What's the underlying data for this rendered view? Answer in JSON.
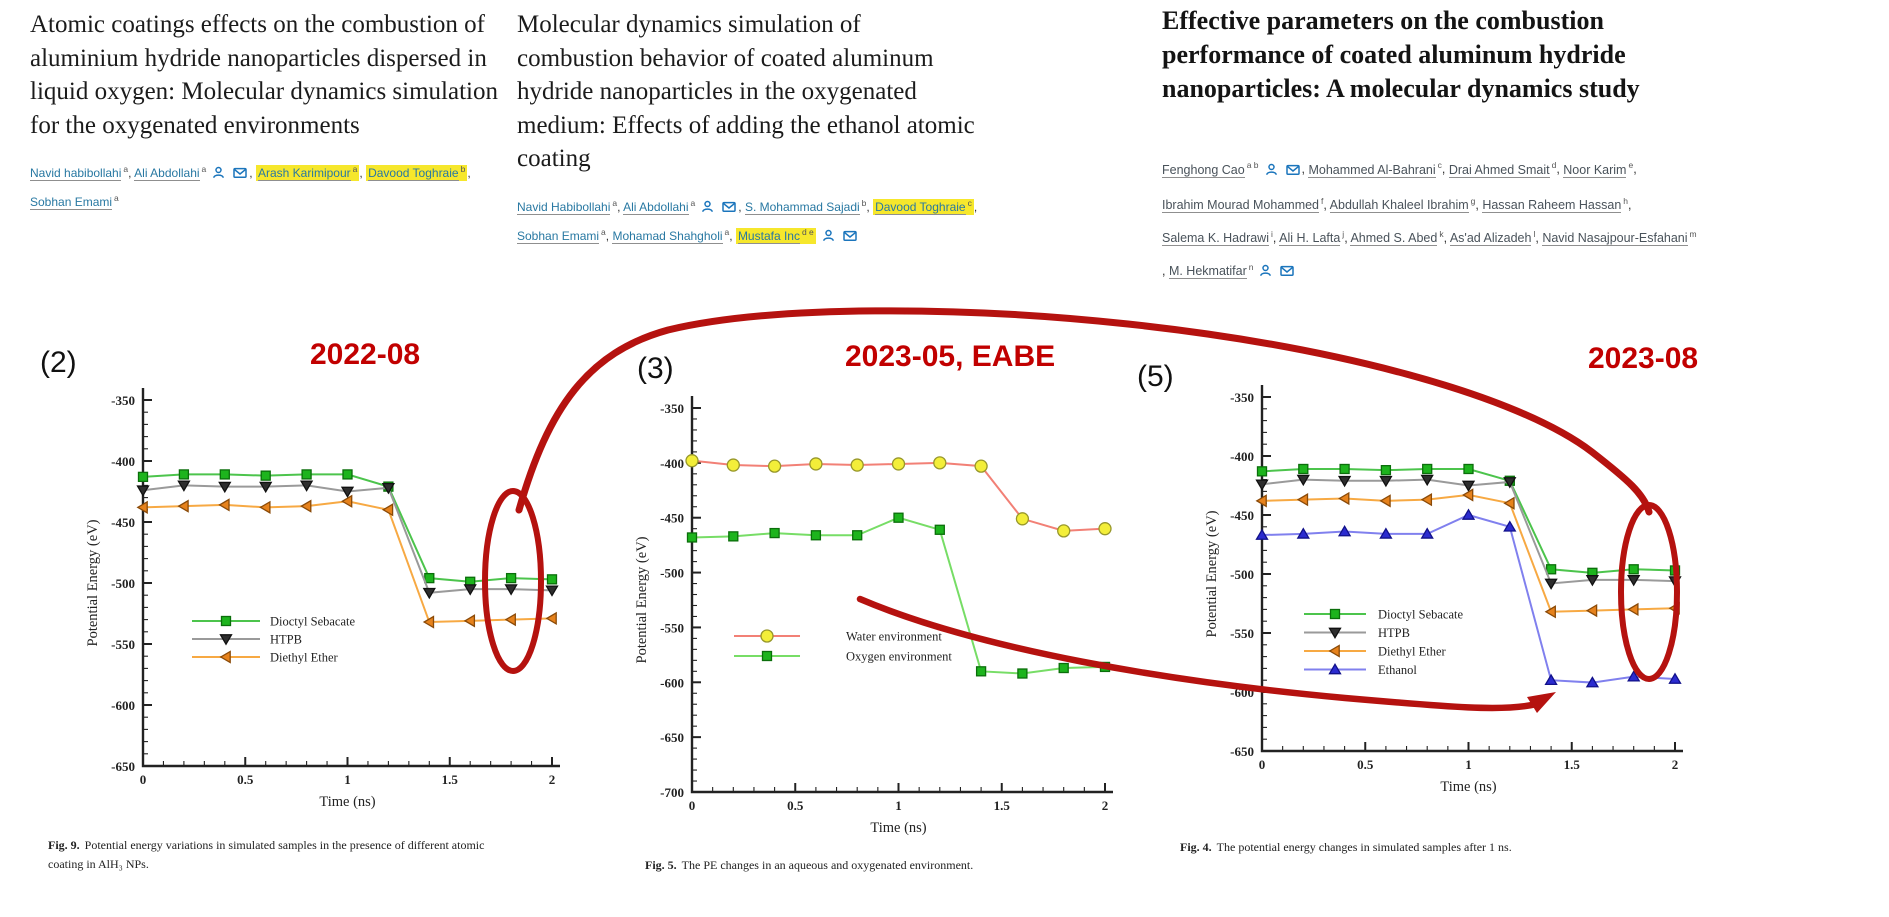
{
  "colors": {
    "annotation_red": "#b5120f",
    "date_red": "#c10000",
    "author_link": "#2878a2",
    "author_link_alt": "#49525a",
    "highlight_yellow": "#f6e72c",
    "icon_blue": "#1b75bc",
    "axis_black": "#222222"
  },
  "papers": [
    {
      "title": "Atomic coatings effects on the combustion of aluminium hydride nanoparticles dispersed in liquid oxygen: Molecular dynamics simulation for the oxygenated environments",
      "author_lines": [
        {
          "suffix": ",",
          "authors": [
            {
              "name": "Navid habibollahi",
              "sup": "a"
            },
            {
              "name": "Ali Abdollahi",
              "sup": "a",
              "icons": [
                "person",
                "mail"
              ]
            },
            {
              "name": "Arash Karimipour",
              "sup": "a",
              "highlight": true
            },
            {
              "name": "Davood Toghraie",
              "sup": "b",
              "highlight": true
            }
          ]
        },
        {
          "authors": [
            {
              "name": "Sobhan Emami",
              "sup": "a"
            }
          ]
        }
      ]
    },
    {
      "title": "Molecular dynamics simulation of combustion behavior of coated aluminum hydride nanoparticles in the oxygenated medium: Effects of adding the ethanol atomic coating",
      "author_lines": [
        {
          "suffix": ",",
          "authors": [
            {
              "name": "Navid Habibollahi",
              "sup": "a"
            },
            {
              "name": "Ali Abdollahi",
              "sup": "a",
              "icons": [
                "person",
                "mail"
              ]
            },
            {
              "name": "S. Mohammad Sajadi",
              "sup": "b"
            },
            {
              "name": "Davood Toghraie",
              "sup": "c",
              "highlight": true
            }
          ]
        },
        {
          "authors": [
            {
              "name": "Sobhan Emami",
              "sup": "a"
            },
            {
              "name": "Mohamad Shahgholi",
              "sup": "a"
            },
            {
              "name": "Mustafa Inc",
              "sup": "d e",
              "highlight": true,
              "icons": [
                "person",
                "mail"
              ]
            }
          ]
        }
      ]
    },
    {
      "title": "Effective parameters on the combustion performance of coated aluminum hydride nanoparticles: A molecular dynamics study",
      "bold": true,
      "author_lines": [
        {
          "suffix": ",",
          "authors": [
            {
              "name": "Fenghong Cao",
              "sup": "a b",
              "icons": [
                "person",
                "mail"
              ]
            },
            {
              "name": "Mohammed Al-Bahrani",
              "sup": "c"
            },
            {
              "name": "Drai Ahmed Smait",
              "sup": "d"
            },
            {
              "name": "Noor Karim",
              "sup": "e"
            }
          ]
        },
        {
          "suffix": ",",
          "authors": [
            {
              "name": "Ibrahim Mourad Mohammed",
              "sup": "f"
            },
            {
              "name": "Abdullah Khaleel Ibrahim",
              "sup": "g"
            },
            {
              "name": "Hassan Raheem Hassan",
              "sup": "h"
            }
          ]
        },
        {
          "authors": [
            {
              "name": "Salema K. Hadrawi",
              "sup": "i"
            },
            {
              "name": "Ali H. Lafta",
              "sup": "j"
            },
            {
              "name": "Ahmed S. Abed",
              "sup": "k"
            },
            {
              "name": "As'ad Alizadeh",
              "sup": "l"
            },
            {
              "name": "Navid Nasajpour-Esfahani",
              "sup": "m"
            }
          ]
        },
        {
          "prefix": ", ",
          "authors": [
            {
              "name": "M. Hekmatifar",
              "sup": "n",
              "icons": [
                "person",
                "mail"
              ]
            }
          ]
        }
      ]
    }
  ],
  "chart_data": [
    {
      "type": "line",
      "panel": "(2)",
      "date_label": "2022-08",
      "caption_bold": "Fig. 9.",
      "caption_text": "Potential energy variations in simulated samples in the presence of different atomic coating in AlH₃ NPs.",
      "xlabel": "Time (ns)",
      "ylabel": "Potential Energy (eV)",
      "xlim": [
        0,
        2
      ],
      "ylim": [
        -650,
        -350
      ],
      "xticks": [
        0,
        0.5,
        1,
        1.5,
        2
      ],
      "yticks": [
        -350,
        -400,
        -450,
        -500,
        -550,
        -600,
        -650
      ],
      "legend_position": "inside-lower-left",
      "x": [
        0,
        0.2,
        0.4,
        0.6,
        0.8,
        1,
        1.2,
        1.4,
        1.6,
        1.8,
        2
      ],
      "series": [
        {
          "name": "Dioctyl Sebacate",
          "line_color": "#4cc44c",
          "marker": "square",
          "marker_fill": "#1db41d",
          "marker_stroke": "#0b6e0b",
          "values": [
            -413,
            -411,
            -411,
            -412,
            -411,
            -411,
            -421,
            -496,
            -499,
            -496,
            -497
          ]
        },
        {
          "name": "HTPB",
          "line_color": "#9a9a9a",
          "marker": "triangle-down",
          "marker_fill": "#2d2d2d",
          "marker_stroke": "#111111",
          "values": [
            -424,
            -420,
            -421,
            -421,
            -420,
            -425,
            -422,
            -508,
            -505,
            -505,
            -506
          ]
        },
        {
          "name": "Diethyl Ether",
          "line_color": "#f7a943",
          "marker": "triangle-left",
          "marker_fill": "#e6821c",
          "marker_stroke": "#8a4a08",
          "values": [
            -438,
            -437,
            -436,
            -438,
            -437,
            -433,
            -440,
            -532,
            -531,
            -530,
            -529
          ]
        }
      ]
    },
    {
      "type": "line",
      "panel": "(3)",
      "date_label": "2023-05, EABE",
      "caption_bold": "Fig. 5.",
      "caption_text": "The PE changes in an aqueous and oxygenated environment.",
      "xlabel": "Time (ns)",
      "ylabel": "Potential Energy (eV)",
      "xlim": [
        0,
        2
      ],
      "ylim": [
        -700,
        -350
      ],
      "xticks": [
        0,
        0.5,
        1,
        1.5,
        2
      ],
      "yticks": [
        -350,
        -400,
        -450,
        -500,
        -550,
        -600,
        -650,
        -700
      ],
      "legend_position": "inside-lower-middle",
      "x": [
        0,
        0.2,
        0.4,
        0.6,
        0.8,
        1,
        1.2,
        1.4,
        1.6,
        1.8,
        2
      ],
      "series": [
        {
          "name": "Water environment",
          "line_color": "#f28076",
          "marker": "circle",
          "marker_fill": "#f3ee39",
          "marker_stroke": "#97972b",
          "values": [
            -398,
            -402,
            -403,
            -401,
            -402,
            -401,
            -400,
            -403,
            -451,
            -462,
            -460
          ]
        },
        {
          "name": "Oxygen environment",
          "line_color": "#77dd66",
          "marker": "square",
          "marker_fill": "#1db41d",
          "marker_stroke": "#0b6e0b",
          "values": [
            -468,
            -467,
            -464,
            -466,
            -466,
            -450,
            -461,
            -590,
            -592,
            -587,
            -586
          ]
        }
      ]
    },
    {
      "type": "line",
      "panel": "(5)",
      "date_label": "2023-08",
      "caption_bold": "Fig. 4.",
      "caption_text": "The potential energy changes in simulated samples after 1 ns.",
      "xlabel": "Time (ns)",
      "ylabel": "Potential Energy (eV)",
      "xlim": [
        0,
        2
      ],
      "ylim": [
        -650,
        -350
      ],
      "xticks": [
        0,
        0.5,
        1,
        1.5,
        2
      ],
      "yticks": [
        -350,
        -400,
        -450,
        -500,
        -550,
        -600,
        -650
      ],
      "legend_position": "inside-lower-left",
      "x": [
        0,
        0.2,
        0.4,
        0.6,
        0.8,
        1,
        1.2,
        1.4,
        1.6,
        1.8,
        2
      ],
      "series": [
        {
          "name": "Dioctyl Sebacate",
          "line_color": "#4cc44c",
          "marker": "square",
          "marker_fill": "#1db41d",
          "marker_stroke": "#0b6e0b",
          "values": [
            -413,
            -411,
            -411,
            -412,
            -411,
            -411,
            -421,
            -496,
            -499,
            -496,
            -497
          ]
        },
        {
          "name": "HTPB",
          "line_color": "#9a9a9a",
          "marker": "triangle-down",
          "marker_fill": "#2d2d2d",
          "marker_stroke": "#111111",
          "values": [
            -424,
            -420,
            -421,
            -421,
            -420,
            -425,
            -422,
            -508,
            -505,
            -505,
            -506
          ]
        },
        {
          "name": "Diethyl Ether",
          "line_color": "#f7a943",
          "marker": "triangle-left",
          "marker_fill": "#e6821c",
          "marker_stroke": "#8a4a08",
          "values": [
            -438,
            -437,
            -436,
            -438,
            -437,
            -433,
            -440,
            -532,
            -531,
            -530,
            -529
          ]
        },
        {
          "name": "Ethanol",
          "line_color": "#8080ee",
          "marker": "triangle-up",
          "marker_fill": "#2b2bcf",
          "marker_stroke": "#11118a",
          "values": [
            -467,
            -466,
            -464,
            -466,
            -466,
            -450,
            -460,
            -590,
            -592,
            -587,
            -589
          ]
        }
      ]
    }
  ]
}
